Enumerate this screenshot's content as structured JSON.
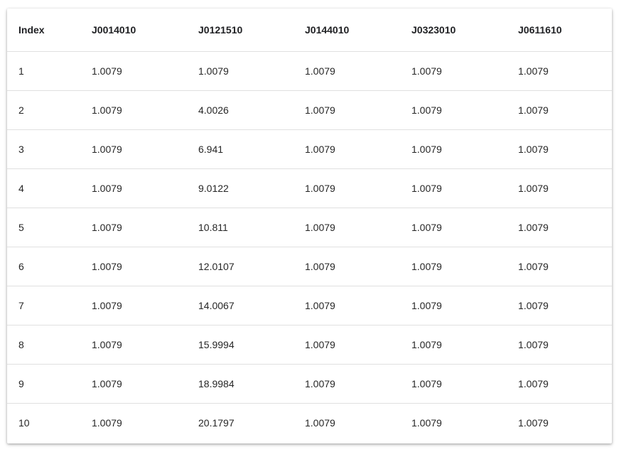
{
  "table": {
    "columns": [
      "Index",
      "J0014010",
      "J0121510",
      "J0144010",
      "J0323010",
      "J0611610"
    ],
    "rows": [
      [
        "1",
        "1.0079",
        "1.0079",
        "1.0079",
        "1.0079",
        "1.0079"
      ],
      [
        "2",
        "1.0079",
        "4.0026",
        "1.0079",
        "1.0079",
        "1.0079"
      ],
      [
        "3",
        "1.0079",
        "6.941",
        "1.0079",
        "1.0079",
        "1.0079"
      ],
      [
        "4",
        "1.0079",
        "9.0122",
        "1.0079",
        "1.0079",
        "1.0079"
      ],
      [
        "5",
        "1.0079",
        "10.811",
        "1.0079",
        "1.0079",
        "1.0079"
      ],
      [
        "6",
        "1.0079",
        "12.0107",
        "1.0079",
        "1.0079",
        "1.0079"
      ],
      [
        "7",
        "1.0079",
        "14.0067",
        "1.0079",
        "1.0079",
        "1.0079"
      ],
      [
        "8",
        "1.0079",
        "15.9994",
        "1.0079",
        "1.0079",
        "1.0079"
      ],
      [
        "9",
        "1.0079",
        "18.9984",
        "1.0079",
        "1.0079",
        "1.0079"
      ],
      [
        "10",
        "1.0079",
        "20.1797",
        "1.0079",
        "1.0079",
        "1.0079"
      ]
    ]
  },
  "colors": {
    "divider": "#e0e0e0",
    "text": "#212121",
    "background": "#ffffff"
  }
}
